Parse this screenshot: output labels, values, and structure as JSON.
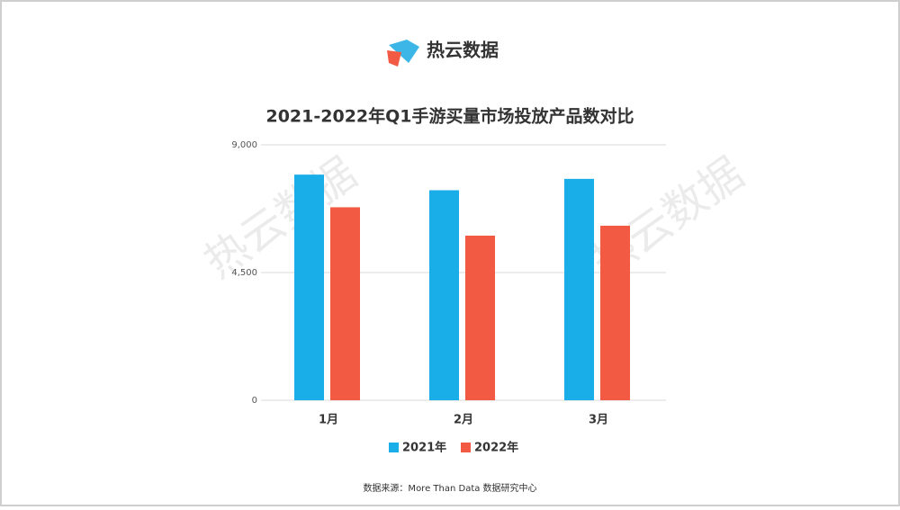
{
  "logo": "热云数据",
  "watermark": "热云数据",
  "source": "数据来源：More Than Data 数据研究中心",
  "chart_data": {
    "type": "bar",
    "title": "2021-2022年Q1手游买量市场投放产品数对比",
    "categories": [
      "1月",
      "2月",
      "3月"
    ],
    "series": [
      {
        "name": "2021年",
        "color": "#1aaee8",
        "values": [
          7950,
          7400,
          7800
        ]
      },
      {
        "name": "2022年",
        "color": "#f25a44",
        "values": [
          6800,
          5800,
          6150
        ]
      }
    ],
    "ylim": [
      0,
      9000
    ],
    "yticks": [
      0,
      {
        "value": 4500,
        "label": "4,500"
      },
      {
        "value": 9000,
        "label": "9,000"
      }
    ],
    "grid": true
  }
}
